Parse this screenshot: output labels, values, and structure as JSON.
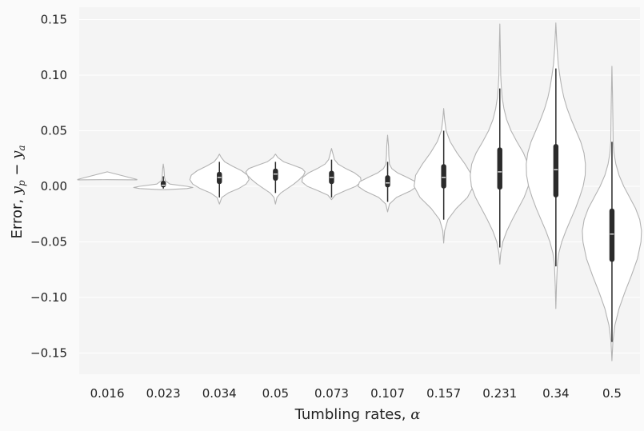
{
  "chart_data": {
    "type": "violin",
    "xlabel": "Tumbling rates, α",
    "ylabel": "Error, y_p − y_a",
    "xlabel_text": "Tumbling rates, ",
    "xlabel_sym": "α",
    "ylabel_text": "Error, ",
    "ylabel_sym": "y",
    "ylabel_sub1": "p",
    "ylabel_minus": " − ",
    "ylabel_sub2": "a",
    "ylim": [
      -0.17,
      0.16
    ],
    "yticks": [
      -0.15,
      -0.1,
      -0.05,
      0.0,
      0.05,
      0.1,
      0.15
    ],
    "ytick_labels": [
      "−0.15",
      "−0.10",
      "−0.05",
      "0.00",
      "0.05",
      "0.10",
      "0.15"
    ],
    "grid": true,
    "colors": {
      "background": "#f4f4f4",
      "grid": "#ffffff",
      "violin_fill": "#ffffff",
      "violin_edge": "#b3b3b3",
      "box": "#2b2b2b"
    },
    "categories": [
      "0.016",
      "0.023",
      "0.034",
      "0.05",
      "0.073",
      "0.107",
      "0.157",
      "0.231",
      "0.34",
      "0.5"
    ],
    "groups": [
      {
        "min": 0.006,
        "max": 0.013,
        "q1": 0.006,
        "median": 0.006,
        "q3": 0.006,
        "wlo": 0.006,
        "whi": 0.006,
        "profile": [
          [
            0.0058,
            1.0
          ],
          [
            0.0062,
            1.0
          ]
        ]
      },
      {
        "min": -0.003,
        "max": 0.02,
        "q1": -0.001,
        "median": 0.001,
        "q3": 0.005,
        "wlo": -0.002,
        "whi": 0.009,
        "profile": [
          [
            -0.003,
            0.1
          ],
          [
            -0.002,
            0.8
          ],
          [
            -0.001,
            1.0
          ],
          [
            0.0,
            0.8
          ],
          [
            0.002,
            0.22
          ],
          [
            0.005,
            0.07
          ],
          [
            0.008,
            0.04
          ],
          [
            0.012,
            0.03
          ],
          [
            0.016,
            0.02
          ],
          [
            0.02,
            0.0
          ]
        ]
      },
      {
        "min": -0.016,
        "max": 0.029,
        "q1": 0.002,
        "median": 0.008,
        "q3": 0.013,
        "wlo": -0.01,
        "whi": 0.022,
        "profile": [
          [
            -0.016,
            0.0
          ],
          [
            -0.01,
            0.08
          ],
          [
            -0.006,
            0.3
          ],
          [
            -0.002,
            0.65
          ],
          [
            0.002,
            0.9
          ],
          [
            0.006,
            1.0
          ],
          [
            0.01,
            0.95
          ],
          [
            0.014,
            0.75
          ],
          [
            0.018,
            0.45
          ],
          [
            0.022,
            0.18
          ],
          [
            0.026,
            0.06
          ],
          [
            0.029,
            0.0
          ]
        ]
      },
      {
        "min": -0.016,
        "max": 0.029,
        "q1": 0.005,
        "median": 0.011,
        "q3": 0.016,
        "wlo": -0.006,
        "whi": 0.022,
        "profile": [
          [
            -0.016,
            0.0
          ],
          [
            -0.01,
            0.05
          ],
          [
            -0.006,
            0.18
          ],
          [
            -0.002,
            0.4
          ],
          [
            0.002,
            0.62
          ],
          [
            0.006,
            0.8
          ],
          [
            0.01,
            0.95
          ],
          [
            0.013,
            1.0
          ],
          [
            0.016,
            0.9
          ],
          [
            0.019,
            0.6
          ],
          [
            0.022,
            0.28
          ],
          [
            0.026,
            0.08
          ],
          [
            0.029,
            0.0
          ]
        ]
      },
      {
        "min": -0.012,
        "max": 0.034,
        "q1": 0.002,
        "median": 0.008,
        "q3": 0.014,
        "wlo": -0.01,
        "whi": 0.024,
        "profile": [
          [
            -0.012,
            0.0
          ],
          [
            -0.008,
            0.12
          ],
          [
            -0.004,
            0.45
          ],
          [
            0.0,
            0.82
          ],
          [
            0.004,
            1.0
          ],
          [
            0.008,
            0.98
          ],
          [
            0.012,
            0.78
          ],
          [
            0.016,
            0.48
          ],
          [
            0.02,
            0.22
          ],
          [
            0.024,
            0.1
          ],
          [
            0.03,
            0.04
          ],
          [
            0.034,
            0.0
          ]
        ]
      },
      {
        "min": -0.023,
        "max": 0.046,
        "q1": -0.001,
        "median": 0.003,
        "q3": 0.01,
        "wlo": -0.014,
        "whi": 0.022,
        "profile": [
          [
            -0.023,
            0.0
          ],
          [
            -0.016,
            0.06
          ],
          [
            -0.01,
            0.3
          ],
          [
            -0.004,
            0.78
          ],
          [
            0.0,
            1.0
          ],
          [
            0.004,
            0.95
          ],
          [
            0.008,
            0.66
          ],
          [
            0.012,
            0.34
          ],
          [
            0.016,
            0.14
          ],
          [
            0.02,
            0.06
          ],
          [
            0.028,
            0.04
          ],
          [
            0.036,
            0.03
          ],
          [
            0.046,
            0.0
          ]
        ]
      },
      {
        "min": -0.051,
        "max": 0.07,
        "q1": -0.002,
        "median": 0.008,
        "q3": 0.02,
        "wlo": -0.03,
        "whi": 0.05,
        "profile": [
          [
            -0.051,
            0.0
          ],
          [
            -0.04,
            0.03
          ],
          [
            -0.03,
            0.14
          ],
          [
            -0.02,
            0.42
          ],
          [
            -0.01,
            0.8
          ],
          [
            0.0,
            1.0
          ],
          [
            0.01,
            0.95
          ],
          [
            0.02,
            0.72
          ],
          [
            0.03,
            0.45
          ],
          [
            0.04,
            0.22
          ],
          [
            0.05,
            0.08
          ],
          [
            0.06,
            0.03
          ],
          [
            0.07,
            0.0
          ]
        ]
      },
      {
        "min": -0.07,
        "max": 0.146,
        "q1": -0.003,
        "median": 0.013,
        "q3": 0.035,
        "wlo": -0.055,
        "whi": 0.088,
        "profile": [
          [
            -0.07,
            0.0
          ],
          [
            -0.06,
            0.03
          ],
          [
            -0.05,
            0.1
          ],
          [
            -0.04,
            0.24
          ],
          [
            -0.03,
            0.42
          ],
          [
            -0.02,
            0.62
          ],
          [
            -0.01,
            0.82
          ],
          [
            0.0,
            0.96
          ],
          [
            0.01,
            1.0
          ],
          [
            0.02,
            0.95
          ],
          [
            0.03,
            0.8
          ],
          [
            0.04,
            0.58
          ],
          [
            0.05,
            0.38
          ],
          [
            0.06,
            0.23
          ],
          [
            0.07,
            0.14
          ],
          [
            0.08,
            0.08
          ],
          [
            0.09,
            0.05
          ],
          [
            0.1,
            0.03
          ],
          [
            0.12,
            0.02
          ],
          [
            0.146,
            0.0
          ]
        ]
      },
      {
        "min": -0.11,
        "max": 0.147,
        "q1": -0.01,
        "median": 0.015,
        "q3": 0.038,
        "wlo": -0.072,
        "whi": 0.106,
        "profile": [
          [
            -0.11,
            0.0
          ],
          [
            -0.09,
            0.02
          ],
          [
            -0.07,
            0.05
          ],
          [
            -0.06,
            0.1
          ],
          [
            -0.05,
            0.2
          ],
          [
            -0.04,
            0.34
          ],
          [
            -0.03,
            0.5
          ],
          [
            -0.02,
            0.66
          ],
          [
            -0.01,
            0.8
          ],
          [
            0.0,
            0.92
          ],
          [
            0.01,
            0.99
          ],
          [
            0.02,
            1.0
          ],
          [
            0.03,
            0.95
          ],
          [
            0.04,
            0.84
          ],
          [
            0.05,
            0.68
          ],
          [
            0.06,
            0.52
          ],
          [
            0.07,
            0.38
          ],
          [
            0.08,
            0.27
          ],
          [
            0.09,
            0.19
          ],
          [
            0.1,
            0.13
          ],
          [
            0.11,
            0.08
          ],
          [
            0.125,
            0.04
          ],
          [
            0.147,
            0.0
          ]
        ]
      },
      {
        "min": -0.157,
        "max": 0.108,
        "q1": -0.068,
        "median": -0.043,
        "q3": -0.02,
        "wlo": -0.14,
        "whi": 0.04,
        "profile": [
          [
            -0.157,
            0.0
          ],
          [
            -0.14,
            0.03
          ],
          [
            -0.125,
            0.1
          ],
          [
            -0.11,
            0.24
          ],
          [
            -0.095,
            0.44
          ],
          [
            -0.08,
            0.66
          ],
          [
            -0.065,
            0.86
          ],
          [
            -0.05,
            0.98
          ],
          [
            -0.04,
            1.0
          ],
          [
            -0.03,
            0.94
          ],
          [
            -0.02,
            0.8
          ],
          [
            -0.01,
            0.6
          ],
          [
            0.0,
            0.4
          ],
          [
            0.01,
            0.24
          ],
          [
            0.02,
            0.13
          ],
          [
            0.03,
            0.07
          ],
          [
            0.04,
            0.04
          ],
          [
            0.06,
            0.03
          ],
          [
            0.08,
            0.02
          ],
          [
            0.108,
            0.0
          ]
        ]
      }
    ]
  }
}
